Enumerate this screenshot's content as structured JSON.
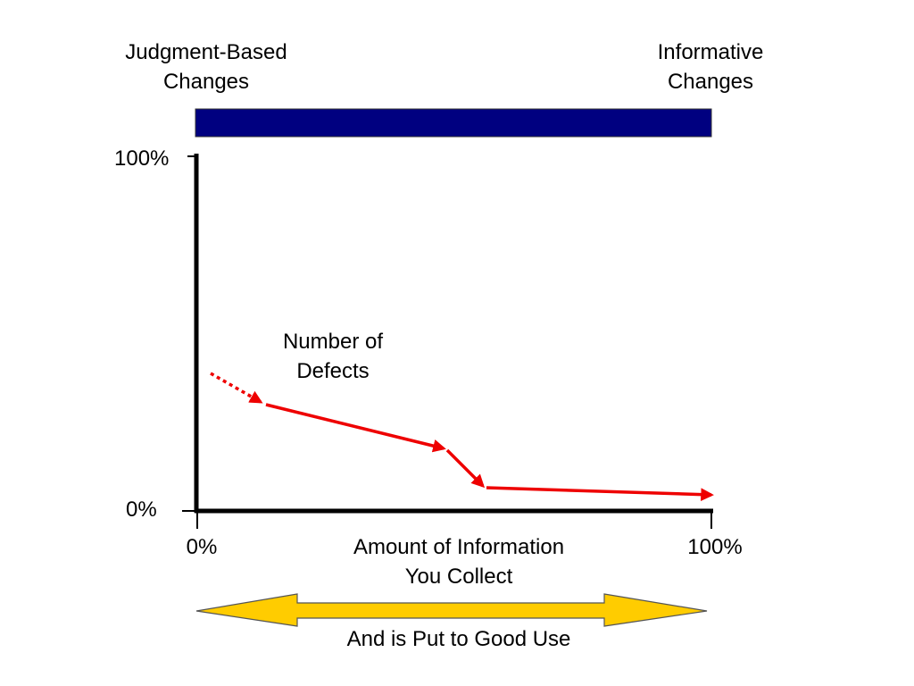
{
  "top_bar": {
    "left_label": [
      "Judgment-Based",
      "Changes"
    ],
    "right_label": [
      "Informative",
      "Changes"
    ],
    "color": "#000080"
  },
  "axes": {
    "y_max_label": "100%",
    "y_min_label": "0%",
    "x_min_label": "0%",
    "x_max_label": "100%",
    "x_label": [
      "Amount of Information",
      "You Collect"
    ]
  },
  "curve": {
    "label": [
      "Number of",
      "Defects"
    ],
    "color": "#ee0000"
  },
  "bottom_arrow": {
    "label": "And is Put to Good Use",
    "fill_color": "#ffcc00"
  }
}
